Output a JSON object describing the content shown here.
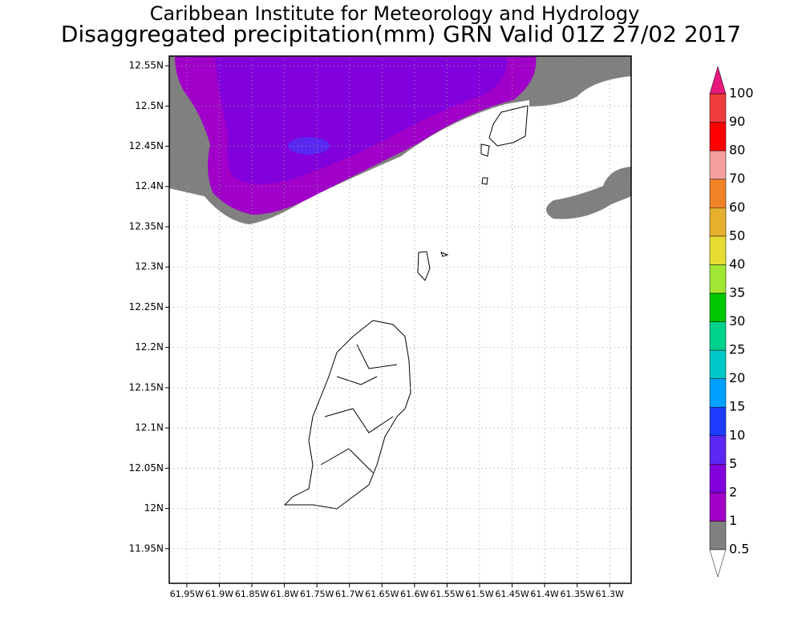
{
  "chart_data": {
    "type": "map",
    "title": "Caribbean Institute for Meteorology and Hydrology",
    "subtitle": "Disaggregated precipitation(mm) GRN Valid 01Z 27/02 2017",
    "xlim": [
      -61.977,
      -61.267
    ],
    "ylim": [
      11.907,
      12.562
    ],
    "xticks": [
      {
        "value": -61.95,
        "label": "61.95W"
      },
      {
        "value": -61.9,
        "label": "61.9W"
      },
      {
        "value": -61.85,
        "label": "61.85W"
      },
      {
        "value": -61.8,
        "label": "61.8W"
      },
      {
        "value": -61.75,
        "label": "61.75W"
      },
      {
        "value": -61.7,
        "label": "61.7W"
      },
      {
        "value": -61.65,
        "label": "61.65W"
      },
      {
        "value": -61.6,
        "label": "61.6W"
      },
      {
        "value": -61.55,
        "label": "61.55W"
      },
      {
        "value": -61.5,
        "label": "61.5W"
      },
      {
        "value": -61.45,
        "label": "61.45W"
      },
      {
        "value": -61.4,
        "label": "61.4W"
      },
      {
        "value": -61.35,
        "label": "61.35W"
      },
      {
        "value": -61.3,
        "label": "61.3W"
      }
    ],
    "yticks": [
      {
        "value": 12.55,
        "label": "12.55N"
      },
      {
        "value": 12.5,
        "label": "12.5N"
      },
      {
        "value": 12.45,
        "label": "12.45N"
      },
      {
        "value": 12.4,
        "label": "12.4N"
      },
      {
        "value": 12.35,
        "label": "12.35N"
      },
      {
        "value": 12.3,
        "label": "12.3N"
      },
      {
        "value": 12.25,
        "label": "12.25N"
      },
      {
        "value": 12.2,
        "label": "12.2N"
      },
      {
        "value": 12.15,
        "label": "12.15N"
      },
      {
        "value": 12.1,
        "label": "12.1N"
      },
      {
        "value": 12.05,
        "label": "12.05N"
      },
      {
        "value": 12,
        "label": "12N"
      },
      {
        "value": 11.95,
        "label": "11.95N"
      }
    ],
    "grid": true,
    "colorbar": {
      "levels": [
        0.5,
        1,
        2,
        5,
        10,
        15,
        20,
        25,
        30,
        35,
        40,
        50,
        60,
        70,
        80,
        90,
        100
      ],
      "colors": [
        "#ffffff",
        "#808080",
        "#a000c8",
        "#8200dc",
        "#5a28f0",
        "#1e3cff",
        "#00a0ff",
        "#00c8c8",
        "#00d28c",
        "#00c800",
        "#a0e632",
        "#e6dc32",
        "#e6af2d",
        "#f08228",
        "#f5a0a0",
        "#ff0000",
        "#f03c3c",
        "#e6197d"
      ]
    }
  }
}
